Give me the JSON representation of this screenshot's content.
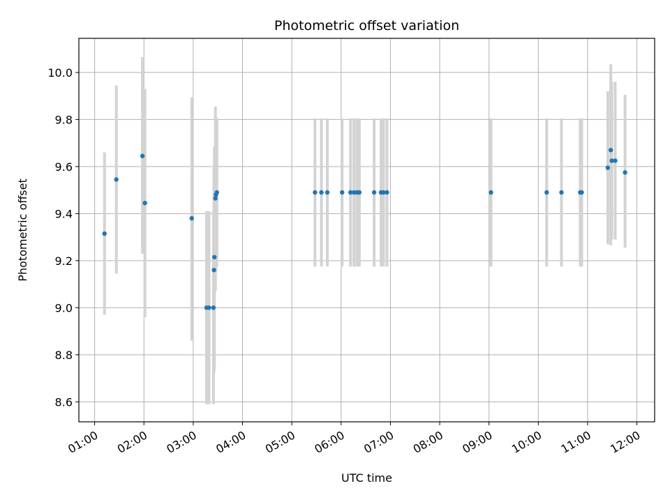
{
  "chart_data": {
    "type": "scatter",
    "title": "Photometric offset variation",
    "xlabel": "UTC time",
    "ylabel": "Photometric offset",
    "x_tick_labels": [
      "01:00",
      "02:00",
      "03:00",
      "04:00",
      "05:00",
      "06:00",
      "07:00",
      "08:00",
      "09:00",
      "10:00",
      "11:00",
      "12:00"
    ],
    "x_ticks_hours": [
      1,
      2,
      3,
      4,
      5,
      6,
      7,
      8,
      9,
      10,
      11,
      12
    ],
    "y_ticks": [
      8.6,
      8.8,
      9.0,
      9.2,
      9.4,
      9.6,
      9.8,
      10.0
    ],
    "y_tick_labels": [
      "8.6",
      "8.8",
      "9.0",
      "9.2",
      "9.4",
      "9.6",
      "9.8",
      "10.0"
    ],
    "xlim_hours": [
      0.68,
      12.36
    ],
    "ylim": [
      8.515,
      10.145
    ],
    "grid": true,
    "point_color": "#1f77b4",
    "errorbar_color": "#d3d3d3",
    "points": [
      {
        "t": 1.2,
        "y": 9.315,
        "lo": 8.97,
        "hi": 9.66
      },
      {
        "t": 1.44,
        "y": 9.545,
        "lo": 9.145,
        "hi": 9.945
      },
      {
        "t": 1.97,
        "y": 9.645,
        "lo": 9.23,
        "hi": 10.065
      },
      {
        "t": 2.02,
        "y": 9.445,
        "lo": 8.96,
        "hi": 9.93
      },
      {
        "t": 2.97,
        "y": 9.38,
        "lo": 8.86,
        "hi": 9.895
      },
      {
        "t": 3.27,
        "y": 9.0,
        "lo": 8.59,
        "hi": 9.41
      },
      {
        "t": 3.32,
        "y": 9.0,
        "lo": 8.59,
        "hi": 9.41
      },
      {
        "t": 3.41,
        "y": 9.0,
        "lo": 8.59,
        "hi": 9.41
      },
      {
        "t": 3.42,
        "y": 9.16,
        "lo": 8.72,
        "hi": 9.595
      },
      {
        "t": 3.43,
        "y": 9.215,
        "lo": 8.74,
        "hi": 9.685
      },
      {
        "t": 3.45,
        "y": 9.465,
        "lo": 9.07,
        "hi": 9.855
      },
      {
        "t": 3.46,
        "y": 9.48,
        "lo": 9.15,
        "hi": 9.81
      },
      {
        "t": 3.48,
        "y": 9.49,
        "lo": 9.175,
        "hi": 9.805
      },
      {
        "t": 5.47,
        "y": 9.49,
        "lo": 9.175,
        "hi": 9.805
      },
      {
        "t": 5.6,
        "y": 9.49,
        "lo": 9.175,
        "hi": 9.805
      },
      {
        "t": 5.72,
        "y": 9.49,
        "lo": 9.175,
        "hi": 9.805
      },
      {
        "t": 6.02,
        "y": 9.49,
        "lo": 9.175,
        "hi": 9.805
      },
      {
        "t": 6.19,
        "y": 9.49,
        "lo": 9.175,
        "hi": 9.805
      },
      {
        "t": 6.26,
        "y": 9.49,
        "lo": 9.175,
        "hi": 9.805
      },
      {
        "t": 6.32,
        "y": 9.49,
        "lo": 9.175,
        "hi": 9.805
      },
      {
        "t": 6.37,
        "y": 9.49,
        "lo": 9.175,
        "hi": 9.805
      },
      {
        "t": 6.67,
        "y": 9.49,
        "lo": 9.175,
        "hi": 9.805
      },
      {
        "t": 6.81,
        "y": 9.49,
        "lo": 9.175,
        "hi": 9.805
      },
      {
        "t": 6.86,
        "y": 9.49,
        "lo": 9.175,
        "hi": 9.805
      },
      {
        "t": 6.93,
        "y": 9.49,
        "lo": 9.175,
        "hi": 9.805
      },
      {
        "t": 9.04,
        "y": 9.49,
        "lo": 9.175,
        "hi": 9.805
      },
      {
        "t": 10.17,
        "y": 9.49,
        "lo": 9.175,
        "hi": 9.805
      },
      {
        "t": 10.47,
        "y": 9.49,
        "lo": 9.175,
        "hi": 9.805
      },
      {
        "t": 10.85,
        "y": 9.49,
        "lo": 9.175,
        "hi": 9.805
      },
      {
        "t": 10.88,
        "y": 9.49,
        "lo": 9.175,
        "hi": 9.805
      },
      {
        "t": 11.41,
        "y": 9.595,
        "lo": 9.27,
        "hi": 9.92
      },
      {
        "t": 11.47,
        "y": 9.67,
        "lo": 9.265,
        "hi": 10.035
      },
      {
        "t": 11.49,
        "y": 9.625,
        "lo": 9.29,
        "hi": 9.96
      },
      {
        "t": 11.56,
        "y": 9.625,
        "lo": 9.29,
        "hi": 9.96
      },
      {
        "t": 11.76,
        "y": 9.575,
        "lo": 9.255,
        "hi": 9.905
      }
    ]
  }
}
